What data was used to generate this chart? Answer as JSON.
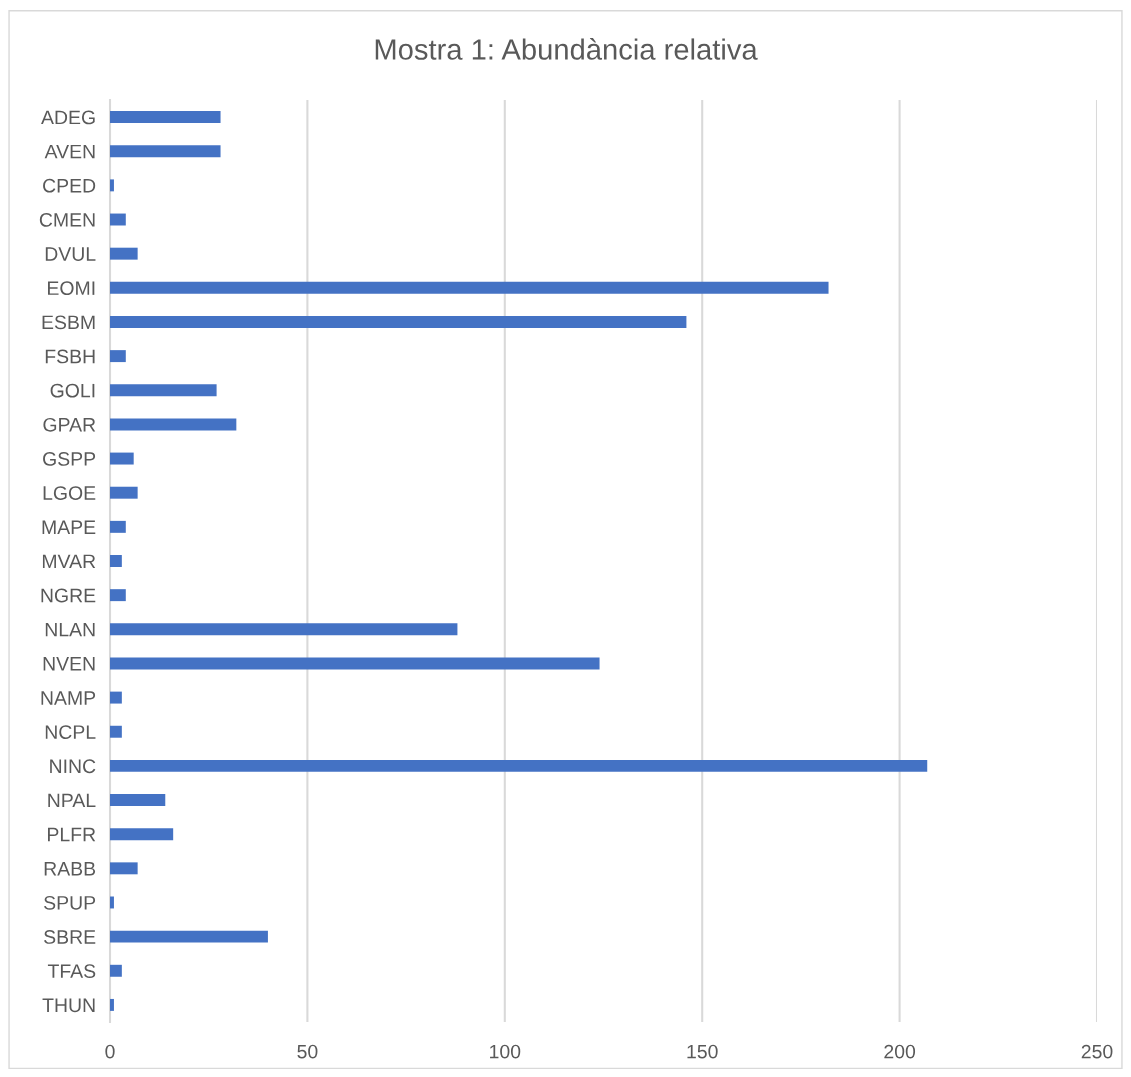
{
  "chart_data": {
    "type": "bar",
    "orientation": "horizontal",
    "title": "Mostra 1: Abundància relativa",
    "categories": [
      "ADEG",
      "AVEN",
      "CPED",
      "CMEN",
      "DVUL",
      "EOMI",
      "ESBM",
      "FSBH",
      "GOLI",
      "GPAR",
      "GSPP",
      "LGOE",
      "MAPE",
      "MVAR",
      "NGRE",
      "NLAN",
      "NVEN",
      "NAMP",
      "NCPL",
      "NINC",
      "NPAL",
      "PLFR",
      "RABB",
      "SPUP",
      "SBRE",
      "TFAS",
      "THUN"
    ],
    "values": [
      28,
      28,
      1,
      4,
      7,
      182,
      146,
      4,
      27,
      32,
      6,
      7,
      4,
      3,
      4,
      88,
      124,
      3,
      3,
      207,
      14,
      16,
      7,
      1,
      40,
      3,
      1
    ],
    "color": "#4472c4",
    "xlim": [
      0,
      250
    ],
    "xticks": [
      0,
      50,
      100,
      150,
      200,
      250
    ],
    "grid": "x"
  }
}
